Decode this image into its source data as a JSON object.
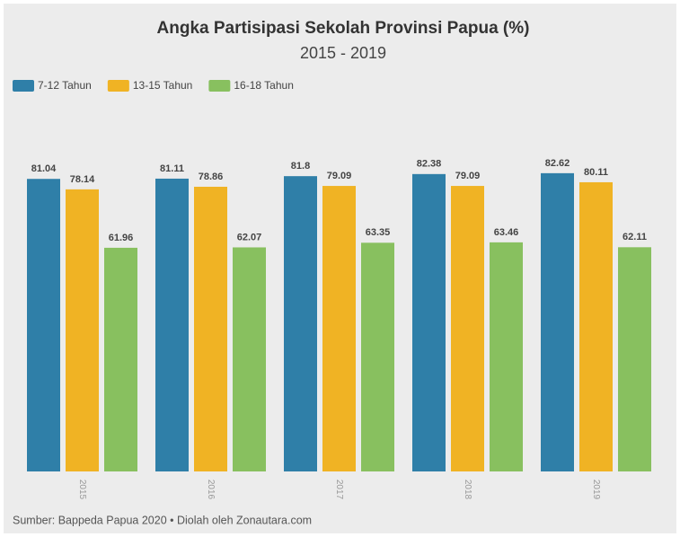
{
  "chart_data": {
    "type": "bar",
    "title": "Angka Partisipasi Sekolah Provinsi Papua (%)",
    "subtitle": "2015 - 2019",
    "source": "Sumber: Bappeda Papua 2020 • Diolah oleh Zonautara.com",
    "categories": [
      "2015",
      "2016",
      "2017",
      "2018",
      "2019"
    ],
    "series": [
      {
        "name": "7-12 Tahun",
        "color": "#2f7fa8",
        "values": [
          81.04,
          81.11,
          81.8,
          82.38,
          82.62
        ]
      },
      {
        "name": "13-15 Tahun",
        "color": "#f0b324",
        "values": [
          78.14,
          78.86,
          79.09,
          79.09,
          80.11
        ]
      },
      {
        "name": "16-18 Tahun",
        "color": "#88c05f",
        "values": [
          61.96,
          62.07,
          63.35,
          63.46,
          62.11
        ]
      }
    ],
    "ylim": [
      0,
      100
    ],
    "legend": "top-left"
  }
}
